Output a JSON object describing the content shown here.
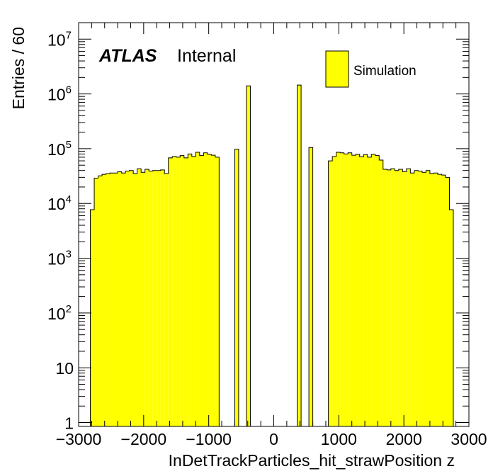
{
  "chart_data": {
    "type": "bar",
    "xlabel": "InDetTrackParticles_hit_strawPosition z",
    "ylabel": "Entries / 60",
    "xlim": [
      -3000,
      3000
    ],
    "ylim": [
      0.85,
      20000000
    ],
    "yscale": "log",
    "x_tick_labels": [
      "−3000",
      "−2000",
      "−1000",
      "0",
      "1000",
      "2000",
      "3000"
    ],
    "y_tick_labels": [
      {
        "base": "1",
        "exp": ""
      },
      {
        "base": "10",
        "exp": ""
      },
      {
        "base": "10",
        "exp": "2"
      },
      {
        "base": "10",
        "exp": "3"
      },
      {
        "base": "10",
        "exp": "4"
      },
      {
        "base": "10",
        "exp": "5"
      },
      {
        "base": "10",
        "exp": "6"
      },
      {
        "base": "10",
        "exp": "7"
      }
    ],
    "fill_color": "#ffff00",
    "line_color": "#000000",
    "legend": {
      "label": "Simulation",
      "position": "top-right"
    },
    "annotation": {
      "atlas": "ATLAS",
      "status": "Internal"
    },
    "bins": [
      {
        "lo": -2820,
        "hi": -2760,
        "v": 7700
      },
      {
        "lo": -2760,
        "hi": -2700,
        "v": 29000
      },
      {
        "lo": -2700,
        "hi": -2640,
        "v": 32000
      },
      {
        "lo": -2640,
        "hi": -2580,
        "v": 34000
      },
      {
        "lo": -2580,
        "hi": -2520,
        "v": 35000
      },
      {
        "lo": -2520,
        "hi": -2460,
        "v": 36000
      },
      {
        "lo": -2460,
        "hi": -2400,
        "v": 36000
      },
      {
        "lo": -2400,
        "hi": -2340,
        "v": 38000
      },
      {
        "lo": -2340,
        "hi": -2280,
        "v": 36000
      },
      {
        "lo": -2280,
        "hi": -2220,
        "v": 39000
      },
      {
        "lo": -2220,
        "hi": -2160,
        "v": 40000
      },
      {
        "lo": -2160,
        "hi": -2100,
        "v": 35000
      },
      {
        "lo": -2100,
        "hi": -2040,
        "v": 43000
      },
      {
        "lo": -2040,
        "hi": -1980,
        "v": 37000
      },
      {
        "lo": -1980,
        "hi": -1920,
        "v": 42000
      },
      {
        "lo": -1920,
        "hi": -1860,
        "v": 39000
      },
      {
        "lo": -1860,
        "hi": -1800,
        "v": 40000
      },
      {
        "lo": -1800,
        "hi": -1740,
        "v": 40000
      },
      {
        "lo": -1740,
        "hi": -1680,
        "v": 41000
      },
      {
        "lo": -1680,
        "hi": -1620,
        "v": 35000
      },
      {
        "lo": -1620,
        "hi": -1560,
        "v": 68000
      },
      {
        "lo": -1560,
        "hi": -1500,
        "v": 72000
      },
      {
        "lo": -1500,
        "hi": -1440,
        "v": 70000
      },
      {
        "lo": -1440,
        "hi": -1380,
        "v": 75000
      },
      {
        "lo": -1380,
        "hi": -1320,
        "v": 68000
      },
      {
        "lo": -1320,
        "hi": -1260,
        "v": 80000
      },
      {
        "lo": -1260,
        "hi": -1200,
        "v": 72000
      },
      {
        "lo": -1200,
        "hi": -1140,
        "v": 86000
      },
      {
        "lo": -1140,
        "hi": -1080,
        "v": 75000
      },
      {
        "lo": -1080,
        "hi": -1020,
        "v": 84000
      },
      {
        "lo": -1020,
        "hi": -960,
        "v": 79000
      },
      {
        "lo": -960,
        "hi": -900,
        "v": 76000
      },
      {
        "lo": -900,
        "hi": -840,
        "v": 70000
      },
      {
        "lo": -600,
        "hi": -540,
        "v": 98000
      },
      {
        "lo": -420,
        "hi": -360,
        "v": 1400000
      },
      {
        "lo": 360,
        "hi": 420,
        "v": 1450000
      },
      {
        "lo": 540,
        "hi": 600,
        "v": 105000
      },
      {
        "lo": 840,
        "hi": 900,
        "v": 60000
      },
      {
        "lo": 900,
        "hi": 960,
        "v": 72000
      },
      {
        "lo": 960,
        "hi": 1020,
        "v": 86000
      },
      {
        "lo": 1020,
        "hi": 1080,
        "v": 84000
      },
      {
        "lo": 1080,
        "hi": 1140,
        "v": 80000
      },
      {
        "lo": 1140,
        "hi": 1200,
        "v": 84000
      },
      {
        "lo": 1200,
        "hi": 1260,
        "v": 76000
      },
      {
        "lo": 1260,
        "hi": 1320,
        "v": 79000
      },
      {
        "lo": 1320,
        "hi": 1380,
        "v": 71000
      },
      {
        "lo": 1380,
        "hi": 1440,
        "v": 78000
      },
      {
        "lo": 1440,
        "hi": 1500,
        "v": 70000
      },
      {
        "lo": 1500,
        "hi": 1560,
        "v": 79000
      },
      {
        "lo": 1560,
        "hi": 1620,
        "v": 75000
      },
      {
        "lo": 1620,
        "hi": 1680,
        "v": 62000
      },
      {
        "lo": 1680,
        "hi": 1740,
        "v": 42000
      },
      {
        "lo": 1740,
        "hi": 1800,
        "v": 41000
      },
      {
        "lo": 1800,
        "hi": 1860,
        "v": 43000
      },
      {
        "lo": 1860,
        "hi": 1920,
        "v": 40000
      },
      {
        "lo": 1920,
        "hi": 1980,
        "v": 42000
      },
      {
        "lo": 1980,
        "hi": 2040,
        "v": 38000
      },
      {
        "lo": 2040,
        "hi": 2100,
        "v": 43000
      },
      {
        "lo": 2100,
        "hi": 2160,
        "v": 36000
      },
      {
        "lo": 2160,
        "hi": 2220,
        "v": 40000
      },
      {
        "lo": 2220,
        "hi": 2280,
        "v": 39000
      },
      {
        "lo": 2280,
        "hi": 2340,
        "v": 37000
      },
      {
        "lo": 2340,
        "hi": 2400,
        "v": 40000
      },
      {
        "lo": 2400,
        "hi": 2460,
        "v": 35000
      },
      {
        "lo": 2460,
        "hi": 2520,
        "v": 36000
      },
      {
        "lo": 2520,
        "hi": 2580,
        "v": 34000
      },
      {
        "lo": 2580,
        "hi": 2640,
        "v": 33000
      },
      {
        "lo": 2640,
        "hi": 2700,
        "v": 30000
      },
      {
        "lo": 2700,
        "hi": 2760,
        "v": 7700
      }
    ]
  }
}
